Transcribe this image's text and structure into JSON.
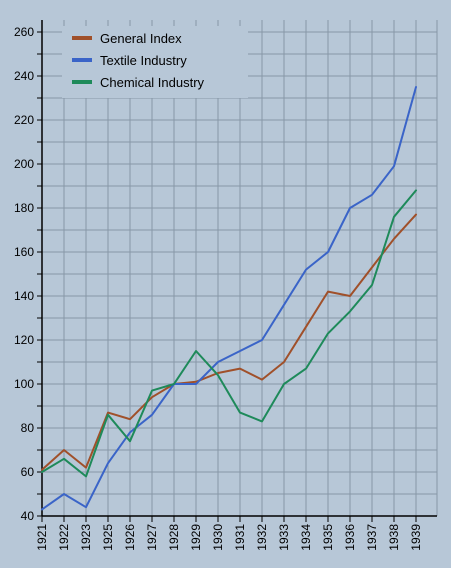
{
  "chart_data": {
    "type": "line",
    "title": "",
    "xlabel": "",
    "ylabel": "",
    "ylim": [
      40,
      260
    ],
    "ytick_step": 20,
    "grid": true,
    "legend_position": "top-left",
    "background_color": "#b7c7d7",
    "grid_color": "#8797a7",
    "x": [
      "1921",
      "1922",
      "1923",
      "1925",
      "1926",
      "1927",
      "1928",
      "1929",
      "1930",
      "1931",
      "1932",
      "1933",
      "1934",
      "1935",
      "1936",
      "1937",
      "1938",
      "1939"
    ],
    "series": [
      {
        "name": "General Index",
        "color": "#a0502a",
        "values": [
          61,
          70,
          62,
          87,
          84,
          94,
          100,
          101,
          105,
          107,
          102,
          110,
          126,
          142,
          140,
          153,
          166,
          177
        ]
      },
      {
        "name": "Textile Industry",
        "color": "#3a64c8",
        "values": [
          43,
          50,
          44,
          64,
          78,
          86,
          100,
          100,
          110,
          115,
          120,
          136,
          152,
          160,
          180,
          186,
          199,
          235
        ]
      },
      {
        "name": "Chemical Industry",
        "color": "#1e8a5a",
        "values": [
          60,
          66,
          58,
          86,
          74,
          97,
          100,
          115,
          104,
          87,
          83,
          100,
          107,
          123,
          133,
          145,
          176,
          188
        ]
      }
    ]
  }
}
